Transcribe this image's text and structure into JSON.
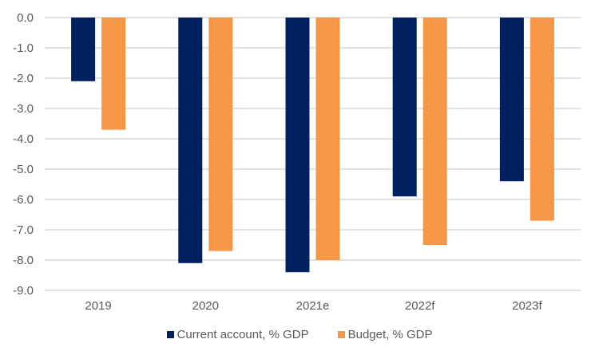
{
  "chart_data": {
    "type": "bar",
    "title": "",
    "xlabel": "",
    "ylabel": "",
    "categories": [
      "2019",
      "2020",
      "2021e",
      "2022f",
      "2023f"
    ],
    "series": [
      {
        "name": "Current account, % GDP",
        "color": "#002060",
        "values": [
          -2.1,
          -8.1,
          -8.4,
          -5.9,
          -5.4
        ]
      },
      {
        "name": "Budget, % GDP",
        "color": "#F79646",
        "values": [
          -3.7,
          -7.7,
          -8.0,
          -7.5,
          -6.7
        ]
      }
    ],
    "ylim": [
      -9.0,
      0.0
    ],
    "yticks": [
      "0.0",
      "-1.0",
      "-2.0",
      "-3.0",
      "-4.0",
      "-5.0",
      "-6.0",
      "-7.0",
      "-8.0",
      "-9.0"
    ],
    "grid": true,
    "legend_position": "bottom"
  }
}
